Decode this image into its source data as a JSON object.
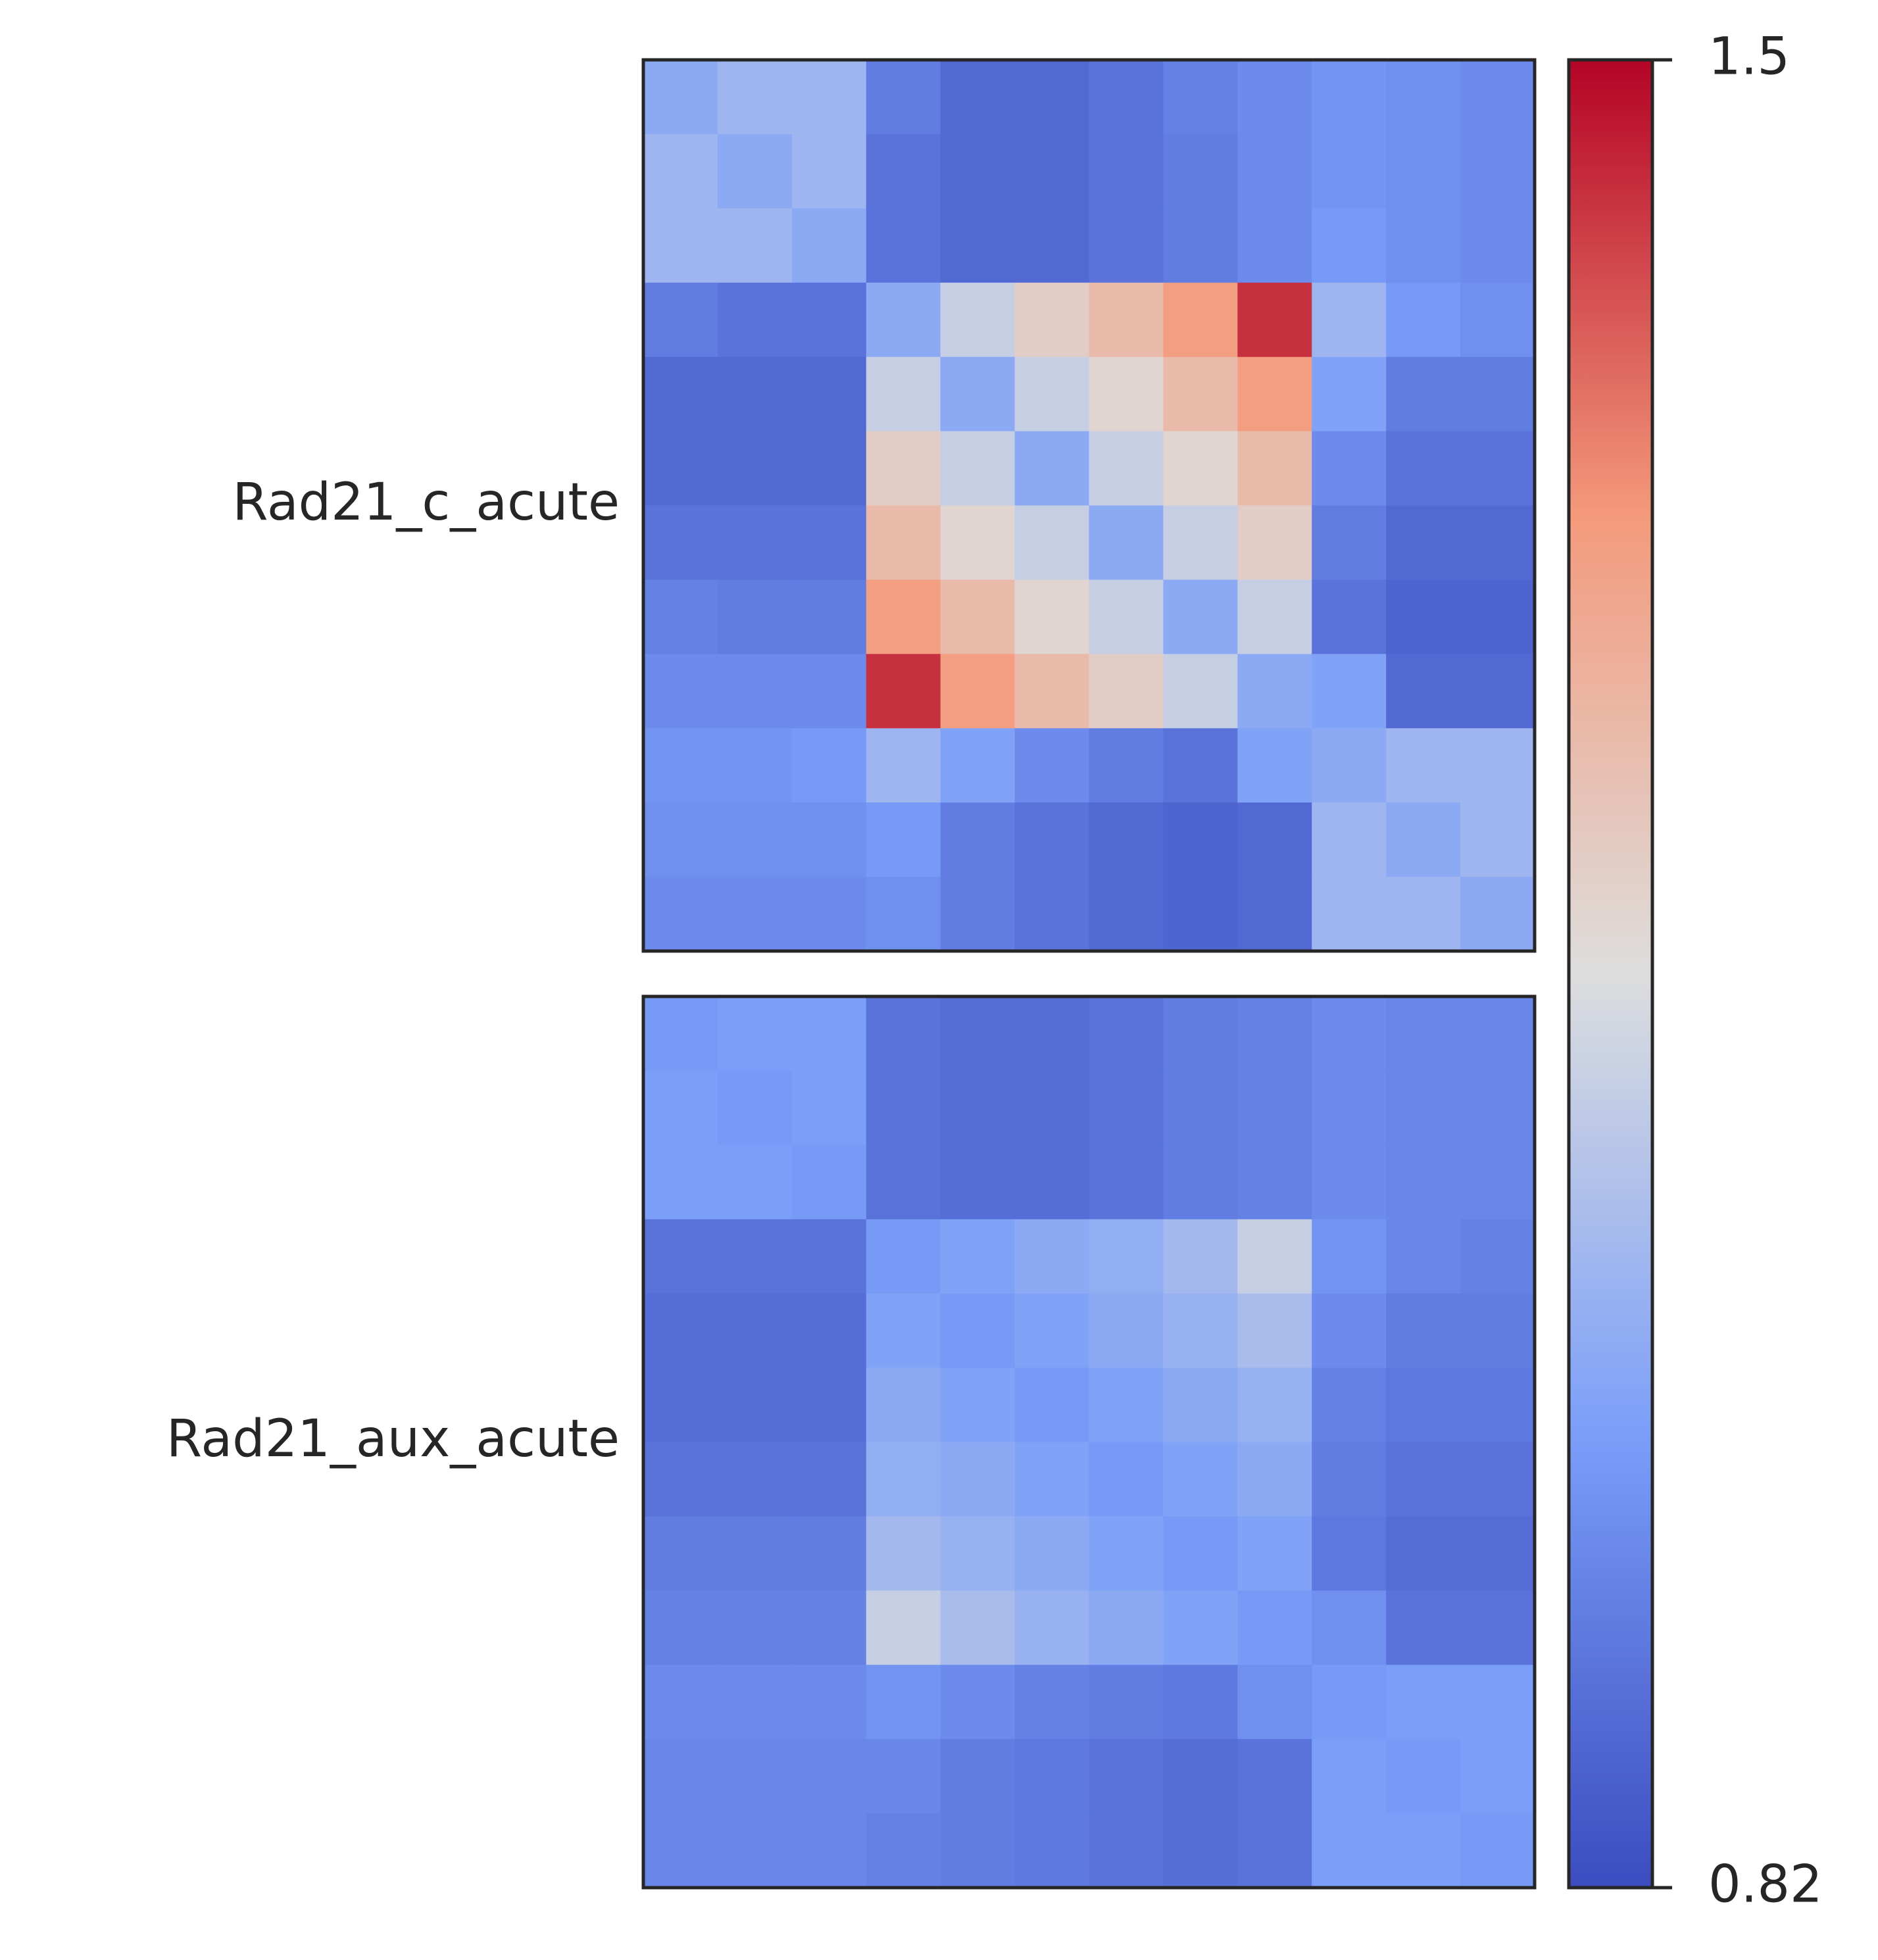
{
  "chart_data": {
    "type": "heatmap",
    "colormap": "coolwarm",
    "clim": [
      0.82,
      1.5
    ],
    "cticks": [
      0.82,
      1.5
    ],
    "panels": [
      {
        "label": "Rad21_c_acute",
        "values": [
          [
            1.02,
            1.05,
            1.05,
            0.92,
            0.88,
            0.88,
            0.9,
            0.93,
            0.95,
            0.97,
            0.96,
            0.95
          ],
          [
            1.05,
            1.02,
            1.05,
            0.9,
            0.88,
            0.88,
            0.9,
            0.92,
            0.95,
            0.97,
            0.96,
            0.95
          ],
          [
            1.05,
            1.05,
            1.02,
            0.9,
            0.88,
            0.88,
            0.9,
            0.92,
            0.95,
            0.98,
            0.96,
            0.95
          ],
          [
            0.92,
            0.9,
            0.9,
            1.02,
            1.12,
            1.2,
            1.25,
            1.32,
            1.45,
            1.05,
            0.98,
            0.96
          ],
          [
            0.88,
            0.88,
            0.88,
            1.12,
            1.02,
            1.12,
            1.18,
            1.25,
            1.32,
            1.0,
            0.92,
            0.92
          ],
          [
            0.88,
            0.88,
            0.88,
            1.2,
            1.12,
            1.02,
            1.12,
            1.18,
            1.25,
            0.95,
            0.9,
            0.9
          ],
          [
            0.9,
            0.9,
            0.9,
            1.25,
            1.18,
            1.12,
            1.02,
            1.12,
            1.2,
            0.92,
            0.88,
            0.88
          ],
          [
            0.93,
            0.92,
            0.92,
            1.32,
            1.25,
            1.18,
            1.12,
            1.02,
            1.12,
            0.9,
            0.87,
            0.87
          ],
          [
            0.95,
            0.95,
            0.95,
            1.45,
            1.32,
            1.25,
            1.2,
            1.12,
            1.02,
            1.0,
            0.88,
            0.88
          ],
          [
            0.97,
            0.97,
            0.98,
            1.05,
            1.0,
            0.95,
            0.92,
            0.9,
            1.0,
            1.02,
            1.05,
            1.05
          ],
          [
            0.96,
            0.96,
            0.96,
            0.98,
            0.92,
            0.9,
            0.88,
            0.87,
            0.88,
            1.05,
            1.02,
            1.05
          ],
          [
            0.95,
            0.95,
            0.95,
            0.96,
            0.92,
            0.9,
            0.88,
            0.87,
            0.88,
            1.05,
            1.05,
            1.02
          ]
        ]
      },
      {
        "label": "Rad21_aux_acute",
        "values": [
          [
            0.98,
            0.99,
            0.99,
            0.9,
            0.89,
            0.89,
            0.9,
            0.92,
            0.93,
            0.95,
            0.94,
            0.94
          ],
          [
            0.99,
            0.98,
            0.99,
            0.9,
            0.89,
            0.89,
            0.9,
            0.92,
            0.93,
            0.95,
            0.94,
            0.94
          ],
          [
            0.99,
            0.99,
            0.98,
            0.9,
            0.89,
            0.89,
            0.9,
            0.92,
            0.93,
            0.95,
            0.94,
            0.94
          ],
          [
            0.9,
            0.9,
            0.9,
            0.98,
            1.0,
            1.02,
            1.03,
            1.06,
            1.12,
            0.97,
            0.94,
            0.93
          ],
          [
            0.89,
            0.89,
            0.89,
            1.0,
            0.98,
            1.0,
            1.02,
            1.04,
            1.07,
            0.95,
            0.92,
            0.92
          ],
          [
            0.89,
            0.89,
            0.89,
            1.02,
            1.0,
            0.98,
            1.0,
            1.02,
            1.04,
            0.93,
            0.91,
            0.91
          ],
          [
            0.9,
            0.9,
            0.9,
            1.03,
            1.02,
            1.0,
            0.98,
            1.0,
            1.02,
            0.92,
            0.9,
            0.9
          ],
          [
            0.92,
            0.92,
            0.92,
            1.06,
            1.04,
            1.02,
            1.0,
            0.98,
            1.0,
            0.91,
            0.89,
            0.89
          ],
          [
            0.93,
            0.93,
            0.93,
            1.12,
            1.07,
            1.04,
            1.02,
            1.0,
            0.98,
            0.96,
            0.9,
            0.9
          ],
          [
            0.95,
            0.95,
            0.95,
            0.97,
            0.95,
            0.93,
            0.92,
            0.91,
            0.96,
            0.98,
            0.99,
            0.99
          ],
          [
            0.94,
            0.94,
            0.94,
            0.94,
            0.92,
            0.91,
            0.9,
            0.89,
            0.9,
            0.99,
            0.98,
            0.99
          ],
          [
            0.94,
            0.94,
            0.94,
            0.93,
            0.92,
            0.91,
            0.9,
            0.89,
            0.9,
            0.99,
            0.99,
            0.98
          ]
        ]
      }
    ]
  }
}
